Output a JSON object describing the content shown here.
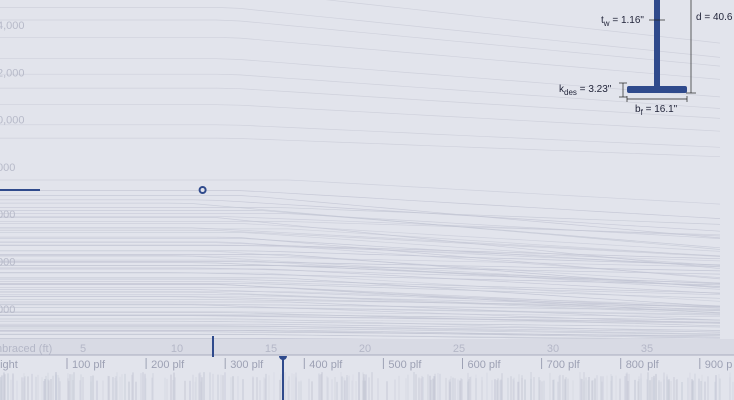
{
  "chart_data": {
    "type": "line",
    "title": "",
    "x_axis": {
      "label": "nbraced (ft)",
      "ticks": [
        "5",
        "10",
        "15",
        "20",
        "25",
        "30",
        "35"
      ],
      "range": [
        1,
        39
      ]
    },
    "y_axis": {
      "ticks": [
        "4,000",
        "2,000",
        "0,000",
        "000",
        "000",
        "000",
        "000"
      ],
      "label": ""
    },
    "grid": false,
    "series_background_count": 80,
    "highlight": {
      "x_start": 1,
      "x_marker": 12,
      "y": 190
    },
    "unbraced_marker_ft": 12.2,
    "weight_axis": {
      "label": "eight",
      "ticks": [
        "100 plf",
        "200 plf",
        "300 plf",
        "400 plf",
        "500 plf",
        "600 plf",
        "700 plf",
        "800 plf",
        "900 p"
      ],
      "selected_plf": "300 plf"
    },
    "section": {
      "tw": "1.16\"",
      "d": "40.6",
      "kdes": "3.23\"",
      "bf": "16.1\""
    }
  },
  "colors": {
    "background": "#e2e4ec",
    "accent": "#2f4a8c",
    "faint_line": "#c3c6d4"
  }
}
